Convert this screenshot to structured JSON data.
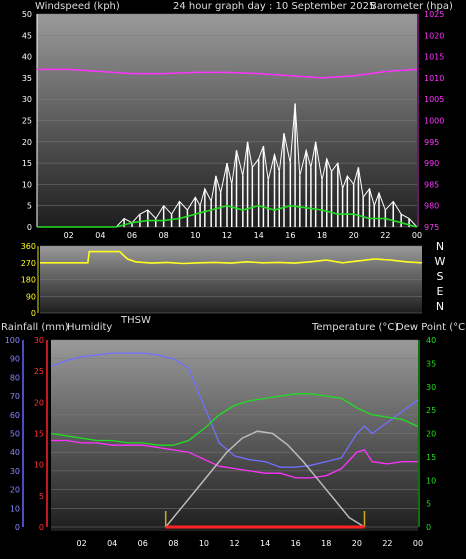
{
  "header": {
    "left": "Windspeed (kph)",
    "center": "24 hour graph day : 10 September 2025",
    "right": "Barometer (hpa)"
  },
  "x_ticks": [
    "02",
    "04",
    "06",
    "08",
    "10",
    "12",
    "14",
    "16",
    "18",
    "20",
    "22",
    "00"
  ],
  "chart_data": [
    {
      "type": "line",
      "series": [
        {
          "name": "Windspeed (kph)",
          "axis": "left",
          "color": "#ffffff",
          "kind": "gust",
          "x": [
            0,
            1,
            2,
            3,
            4,
            5,
            5.5,
            6,
            6.5,
            7,
            7.5,
            8,
            8.5,
            9,
            9.5,
            10,
            10.3,
            10.6,
            11,
            11.3,
            11.6,
            12,
            12.3,
            12.6,
            13,
            13.3,
            13.6,
            14,
            14.3,
            14.6,
            15,
            15.3,
            15.6,
            16,
            16.3,
            16.6,
            17,
            17.3,
            17.6,
            18,
            18.3,
            18.6,
            19,
            19.3,
            19.6,
            20,
            20.3,
            20.6,
            21,
            21.3,
            21.6,
            22,
            22.5,
            23,
            23.5,
            24
          ],
          "y": [
            0,
            0,
            0,
            0,
            0,
            0,
            2,
            1,
            3,
            4,
            2,
            5,
            3,
            6,
            4,
            7,
            5,
            9,
            6,
            12,
            8,
            15,
            10,
            18,
            12,
            20,
            14,
            16,
            19,
            11,
            17,
            13,
            22,
            15,
            29,
            12,
            18,
            14,
            20,
            11,
            16,
            13,
            15,
            9,
            12,
            10,
            14,
            7,
            9,
            5,
            8,
            4,
            6,
            3,
            2,
            0
          ]
        },
        {
          "name": "Windspeed average",
          "axis": "left",
          "color": "#22dd22",
          "kind": "average",
          "x": [
            0,
            5,
            6,
            7,
            8,
            9,
            10,
            11,
            12,
            13,
            14,
            15,
            16,
            17,
            18,
            19,
            20,
            21,
            22,
            23,
            24
          ],
          "y": [
            0,
            0,
            1,
            1.5,
            1.5,
            2,
            3,
            4,
            5,
            4,
            5,
            4,
            5,
            4.5,
            4,
            3,
            3,
            2,
            2,
            1,
            0
          ]
        },
        {
          "name": "Barometer (hpa)",
          "axis": "right",
          "color": "#ff33ff",
          "x": [
            0,
            2,
            4,
            6,
            8,
            10,
            12,
            14,
            16,
            18,
            20,
            22,
            24
          ],
          "y": [
            1012,
            1012,
            1011.5,
            1011,
            1011,
            1011.3,
            1011.3,
            1011,
            1010.5,
            1010,
            1010.5,
            1011.5,
            1012
          ]
        }
      ],
      "ylim_left": [
        0,
        50
      ],
      "ylim_right": [
        975,
        1025
      ],
      "yticks_left": [
        0,
        5,
        10,
        15,
        20,
        25,
        30,
        35,
        40,
        45,
        50
      ],
      "yticks_right": [
        975,
        980,
        985,
        990,
        995,
        1000,
        1005,
        1010,
        1015,
        1020,
        1025
      ],
      "xlim": [
        0,
        24
      ],
      "grid": true
    },
    {
      "type": "line",
      "series": [
        {
          "name": "Wind direction",
          "color": "#ffff22",
          "x": [
            0,
            1,
            2,
            3,
            3.1,
            5,
            5.5,
            6,
            7,
            8,
            9,
            10,
            11,
            12,
            13,
            14,
            15,
            16,
            17,
            18,
            19,
            20,
            21,
            22,
            23,
            24
          ],
          "y": [
            270,
            270,
            270,
            270,
            330,
            330,
            290,
            275,
            268,
            272,
            266,
            270,
            272,
            268,
            275,
            270,
            272,
            268,
            275,
            285,
            270,
            280,
            290,
            285,
            275,
            270
          ]
        }
      ],
      "ylim": [
        0,
        360
      ],
      "yticks": [
        0,
        90,
        180,
        270,
        360
      ],
      "compass": [
        "N",
        "W",
        "S",
        "E",
        "N"
      ]
    },
    {
      "type": "line",
      "series": [
        {
          "name": "Humidity",
          "axis": "left-outer",
          "color": "#7070ff",
          "x": [
            0,
            1,
            2,
            3,
            4,
            5,
            6,
            7,
            8,
            9,
            10,
            11,
            12,
            13,
            14,
            15,
            16,
            17,
            18,
            19,
            20,
            20.5,
            21,
            21.5,
            22,
            23,
            24
          ],
          "y": [
            86,
            89,
            91,
            92,
            93,
            93,
            93,
            92,
            90,
            85,
            65,
            45,
            38,
            36,
            35,
            32,
            32,
            33,
            35,
            37,
            50,
            54,
            50,
            53,
            56,
            62,
            68
          ]
        },
        {
          "name": "Temperature (°C)",
          "axis": "right",
          "color": "#22dd22",
          "x": [
            0,
            1,
            2,
            3,
            4,
            5,
            6,
            7,
            8,
            9,
            10,
            11,
            12,
            13,
            14,
            15,
            16,
            17,
            18,
            19,
            20,
            21,
            22,
            23,
            24
          ],
          "y": [
            20,
            19.5,
            19,
            18.5,
            18.5,
            18,
            18,
            17.5,
            17.5,
            18.5,
            21,
            24,
            26,
            27,
            27.5,
            28,
            28.5,
            28.5,
            28,
            27.5,
            25.5,
            24,
            23.5,
            23,
            21.5
          ]
        },
        {
          "name": "Dew Point (°C)",
          "axis": "right",
          "color": "#ff33ff",
          "x": [
            0,
            1,
            2,
            3,
            4,
            5,
            6,
            7,
            8,
            9,
            10,
            11,
            12,
            13,
            14,
            15,
            16,
            17,
            18,
            19,
            20,
            20.5,
            21,
            22,
            23,
            24
          ],
          "y": [
            18.5,
            18.5,
            18,
            18,
            17.5,
            17.5,
            17.5,
            17,
            16.5,
            16,
            14.5,
            13,
            12.5,
            12,
            11.5,
            11.5,
            10.5,
            10.5,
            11,
            12.5,
            16,
            16.5,
            14,
            13.5,
            14,
            14
          ]
        },
        {
          "name": "THSW",
          "axis": "right",
          "color": "#bbbbbb",
          "x": [
            7.5,
            8.5,
            9.5,
            10.5,
            11.5,
            12.5,
            13.5,
            14.5,
            15.5,
            16.5,
            17.5,
            18.5,
            19.5,
            20.5
          ],
          "y": [
            0,
            4,
            8,
            12,
            16,
            19,
            20.5,
            20,
            17.5,
            14,
            10,
            6,
            2,
            0
          ]
        },
        {
          "name": "Rainfall (mm)",
          "axis": "left-inner",
          "color": "#ff2222",
          "x": [
            7.5,
            20.5
          ],
          "y": [
            0,
            0
          ]
        }
      ],
      "sun_markers": [
        7.5,
        20.5
      ],
      "ylim_left_outer": [
        0,
        100
      ],
      "ylim_left_inner": [
        0,
        30
      ],
      "ylim_right": [
        0,
        40
      ],
      "yticks_left_outer": [
        0,
        10,
        20,
        30,
        40,
        50,
        60,
        70,
        80,
        90,
        100
      ],
      "yticks_left_inner": [
        0,
        5,
        10,
        15,
        20,
        25,
        30
      ],
      "yticks_right": [
        0,
        5,
        10,
        15,
        20,
        25,
        30,
        35,
        40
      ],
      "xlim": [
        0,
        24
      ]
    }
  ],
  "labels": {
    "rainfall": "Rainfall (mm)",
    "humidity": "Humidity",
    "thsw": "THSW",
    "temperature": "Temperature (°C)",
    "dew_point": "Dew Point (°C)"
  },
  "colors": {
    "wind_gust": "#ffffff",
    "wind_avg": "#22dd22",
    "barometer": "#ff33ff",
    "wind_dir": "#ffff22",
    "humidity": "#7070ff",
    "temperature": "#22dd22",
    "dew_point": "#ff33ff",
    "thsw": "#bbbbbb",
    "rain": "#ff2222",
    "sun_marker": "#ccaa22"
  }
}
